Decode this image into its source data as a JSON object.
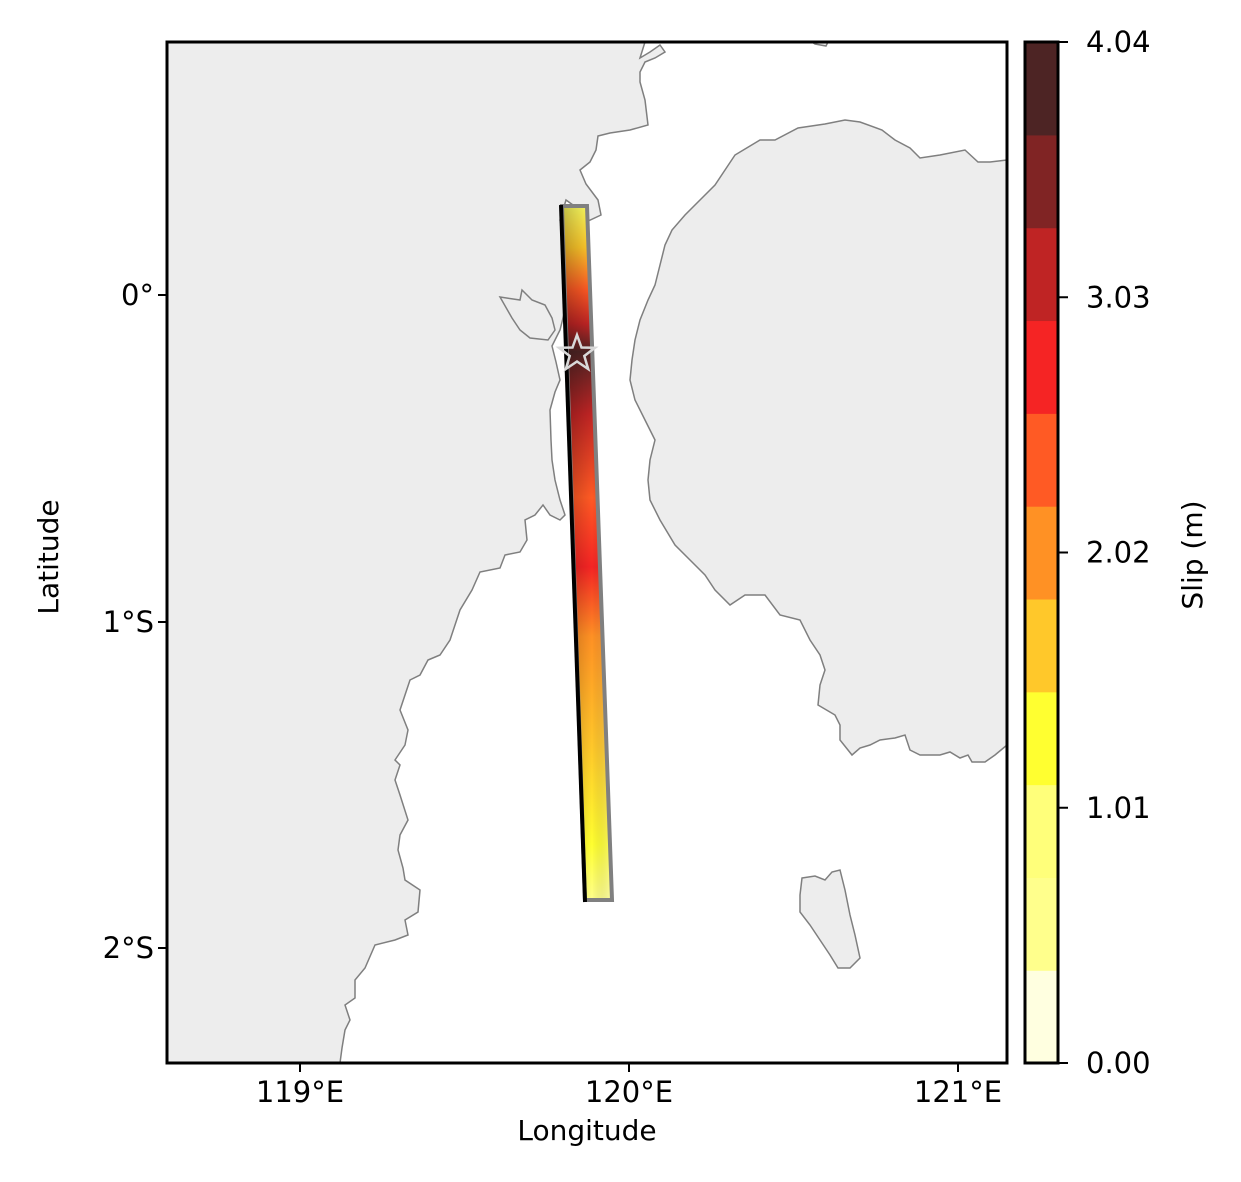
{
  "map": {
    "extent": {
      "lon": [
        118.6,
        121.15
      ],
      "lat": [
        -2.35,
        0.78
      ]
    },
    "axes": {
      "xlabel": "Longitude",
      "ylabel": "Latitude",
      "x_ticks": [
        {
          "value": 119,
          "label": "119°E"
        },
        {
          "value": 120,
          "label": "120°E"
        },
        {
          "value": 121,
          "label": "121°E"
        }
      ],
      "y_ticks": [
        {
          "value": 0,
          "label": "0°"
        },
        {
          "value": -1,
          "label": "1°S"
        },
        {
          "value": -2,
          "label": "2°S"
        }
      ]
    },
    "colors": {
      "land": "#ededed",
      "coastline": "#7f7f7f",
      "sea": "#ffffff",
      "fault_trace": "#000000",
      "rupture_outline": "#808080",
      "epicenter_star": "#d9d9d9"
    },
    "layers": {
      "land": "Land areas (Sulawesi)",
      "rupture": "Fault rupture plane with slip distribution",
      "fault_trace": "Fault top trace",
      "epicenter": "Epicenter"
    },
    "fault": {
      "top_trace": [
        [
          119.79,
          0.27
        ],
        [
          119.87,
          -1.85
        ]
      ],
      "bottom_trace": [
        [
          119.87,
          0.27
        ],
        [
          119.95,
          -1.85
        ]
      ],
      "epicenter": {
        "lon": 119.84,
        "lat": -0.18
      },
      "peak_slip_m": 4.04,
      "peak_slip_location": {
        "lon": 119.82,
        "lat": -0.2
      }
    },
    "colorbar": {
      "label": "Slip (m)",
      "min": 0.0,
      "max": 4.04,
      "tick_labels": [
        "0.00",
        "1.01",
        "2.02",
        "3.03",
        "4.04"
      ],
      "levels": [
        "#ffffe0",
        "#ffff8c",
        "#ffff7a",
        "#ffff30",
        "#ffc82a",
        "#ff9124",
        "#ff5a24",
        "#f52424",
        "#bf2424",
        "#802424",
        "#4d2424"
      ]
    }
  }
}
